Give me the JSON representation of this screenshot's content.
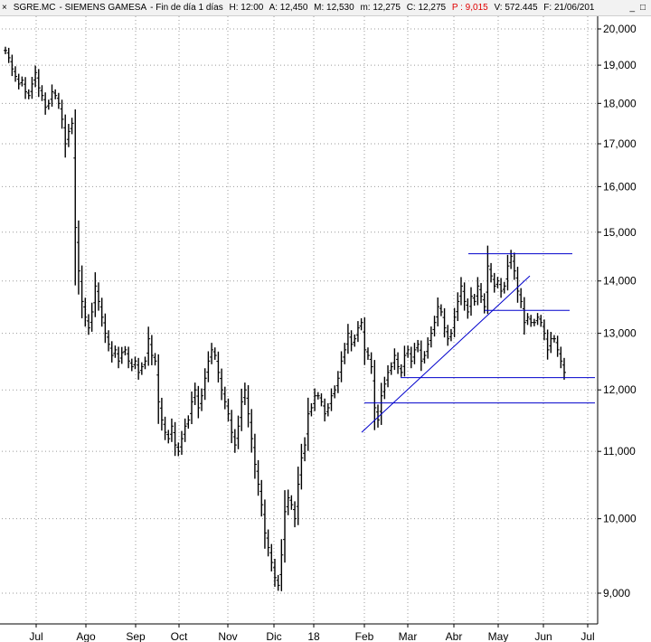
{
  "header": {
    "close_glyph": "×",
    "symbol": "SGRE.MC",
    "name": "SIEMENS GAMESA",
    "period": "Fin de día 1 días",
    "time": "H: 12:00",
    "open": "A: 12,450",
    "high": "M: 12,530",
    "low": "m: 12,275",
    "close": "C: 12,275",
    "change": "P : 9,015",
    "volume": "V: 572.445",
    "date": "F: 21/06/201",
    "minimize_glyph": "_",
    "restore_glyph": "□",
    "change_color": "#e00000"
  },
  "chart_data": {
    "type": "bar",
    "style": "ohlc",
    "ylim": [
      8800,
      20300
    ],
    "yscale": "log",
    "yticks": [
      9000,
      10000,
      11000,
      12000,
      13000,
      14000,
      15000,
      16000,
      17000,
      18000,
      19000,
      20000
    ],
    "ytick_labels": [
      "9,000",
      "10,000",
      "11,000",
      "12,000",
      "13,000",
      "14,000",
      "15,000",
      "16,000",
      "17,000",
      "18,000",
      "19,000",
      "20,000"
    ],
    "xtick_labels": [
      "Jul",
      "Ago",
      "Sep",
      "Oct",
      "Nov",
      "Dic",
      "18",
      "Feb",
      "Mar",
      "Abr",
      "May",
      "Jun",
      "Jul"
    ],
    "grid": true,
    "series": [
      {
        "values": [
          19400,
          19200,
          18900,
          18700,
          18500,
          18600,
          18300,
          18200,
          18500,
          18800,
          18400,
          18200,
          17900,
          18000,
          18300,
          18200,
          18000,
          17600,
          17000,
          17300,
          17500,
          15100,
          14200,
          13600,
          13300,
          13100,
          13400,
          13900,
          13600,
          13300,
          13000,
          12800,
          12600,
          12700,
          12500,
          12650,
          12700,
          12500,
          12400,
          12500,
          12300,
          12400,
          12500,
          12900,
          12600,
          12500,
          11800,
          11500,
          11300,
          11200,
          11400,
          11100,
          11000,
          11200,
          11400,
          11500,
          11800,
          12000,
          11700,
          11900,
          12200,
          12500,
          12700,
          12600,
          12300,
          12000,
          11800,
          11600,
          11300,
          11100,
          11400,
          11800,
          12000,
          11600,
          11200,
          10800,
          10500,
          10200,
          9800,
          9600,
          9400,
          9200,
          9100,
          9500,
          10100,
          10300,
          10200,
          10000,
          10500,
          10900,
          11100,
          11600,
          11700,
          11900,
          11900,
          11800,
          11600,
          11700,
          11900,
          12000,
          12200,
          12500,
          12700,
          13000,
          12800,
          12900,
          13100,
          13200,
          12700,
          12600,
          12400,
          11700,
          11500,
          11900,
          12100,
          12300,
          12400,
          12600,
          12400,
          12300,
          12600,
          12700,
          12500,
          12700,
          12800,
          12500,
          12600,
          12800,
          13000,
          13200,
          13500,
          13400,
          13100,
          12900,
          13000,
          13300,
          13600,
          13900,
          13600,
          13400,
          13700,
          13600,
          13900,
          13700,
          13500,
          14300,
          14100,
          13900,
          14000,
          13800,
          13900,
          14300,
          14500,
          14200,
          13800,
          13600,
          13200,
          13300,
          13200,
          13200,
          13300,
          13200,
          13000,
          12700,
          12900,
          12900,
          12700,
          12500,
          12300
        ]
      }
    ],
    "annotations": [
      {
        "kind": "trendline",
        "from": [
          "Feb",
          11300
        ],
        "to": [
          "May",
          14100
        ]
      },
      {
        "kind": "horizontal",
        "level": 14550,
        "from": "Abr",
        "to": "Jun"
      },
      {
        "kind": "horizontal",
        "level": 13430,
        "from": "May",
        "to": "Jun"
      },
      {
        "kind": "horizontal",
        "level": 12210,
        "from": "Mar",
        "to": "Jul"
      },
      {
        "kind": "horizontal",
        "level": 11780,
        "from": "Feb",
        "to": "Jul"
      }
    ],
    "colors": {
      "bars": "#000000",
      "lines": "#0000cc",
      "grid": "#9a9a9a"
    }
  }
}
